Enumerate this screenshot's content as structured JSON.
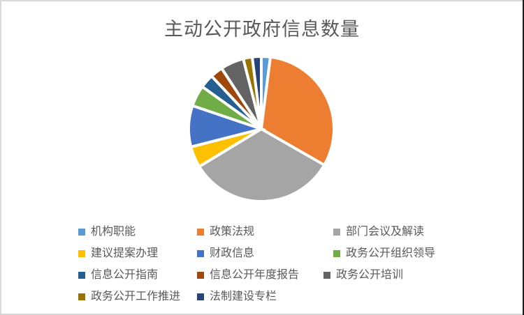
{
  "chart": {
    "title": "主动公开政府信息数量",
    "title_color": "#595959",
    "frame_border_color": "#D9D9D9",
    "background_color": "#FFFFFF"
  },
  "chart_data": {
    "type": "pie",
    "title": "主动公开政府信息数量",
    "value_unit": "percent-of-total (estimated from slice angles; no numeric data labels are shown in the image)",
    "start_angle_deg": 0,
    "direction": "clockwise",
    "legend_position": "bottom",
    "slice_border_color": "#FFFFFF",
    "slices": [
      {
        "label": "机构职能",
        "value": 2.0,
        "color": "#5B9BD5"
      },
      {
        "label": "政策法规",
        "value": 31.3,
        "color": "#ED7D31"
      },
      {
        "label": "部门会议及解读",
        "value": 33.0,
        "color": "#A5A5A5"
      },
      {
        "label": "建议提案办理",
        "value": 4.7,
        "color": "#FFC000"
      },
      {
        "label": "财政信息",
        "value": 9.2,
        "color": "#4472C4"
      },
      {
        "label": "政务公开组织领导",
        "value": 4.7,
        "color": "#70AD47"
      },
      {
        "label": "信息公开指南",
        "value": 3.1,
        "color": "#255E91"
      },
      {
        "label": "信息公开年度报告",
        "value": 2.8,
        "color": "#9E480E"
      },
      {
        "label": "政务公开培训",
        "value": 5.2,
        "color": "#636363"
      },
      {
        "label": "政务公开工作推进",
        "value": 2.0,
        "color": "#997300"
      },
      {
        "label": "法制建设专栏",
        "value": 2.0,
        "color": "#264478"
      }
    ]
  }
}
